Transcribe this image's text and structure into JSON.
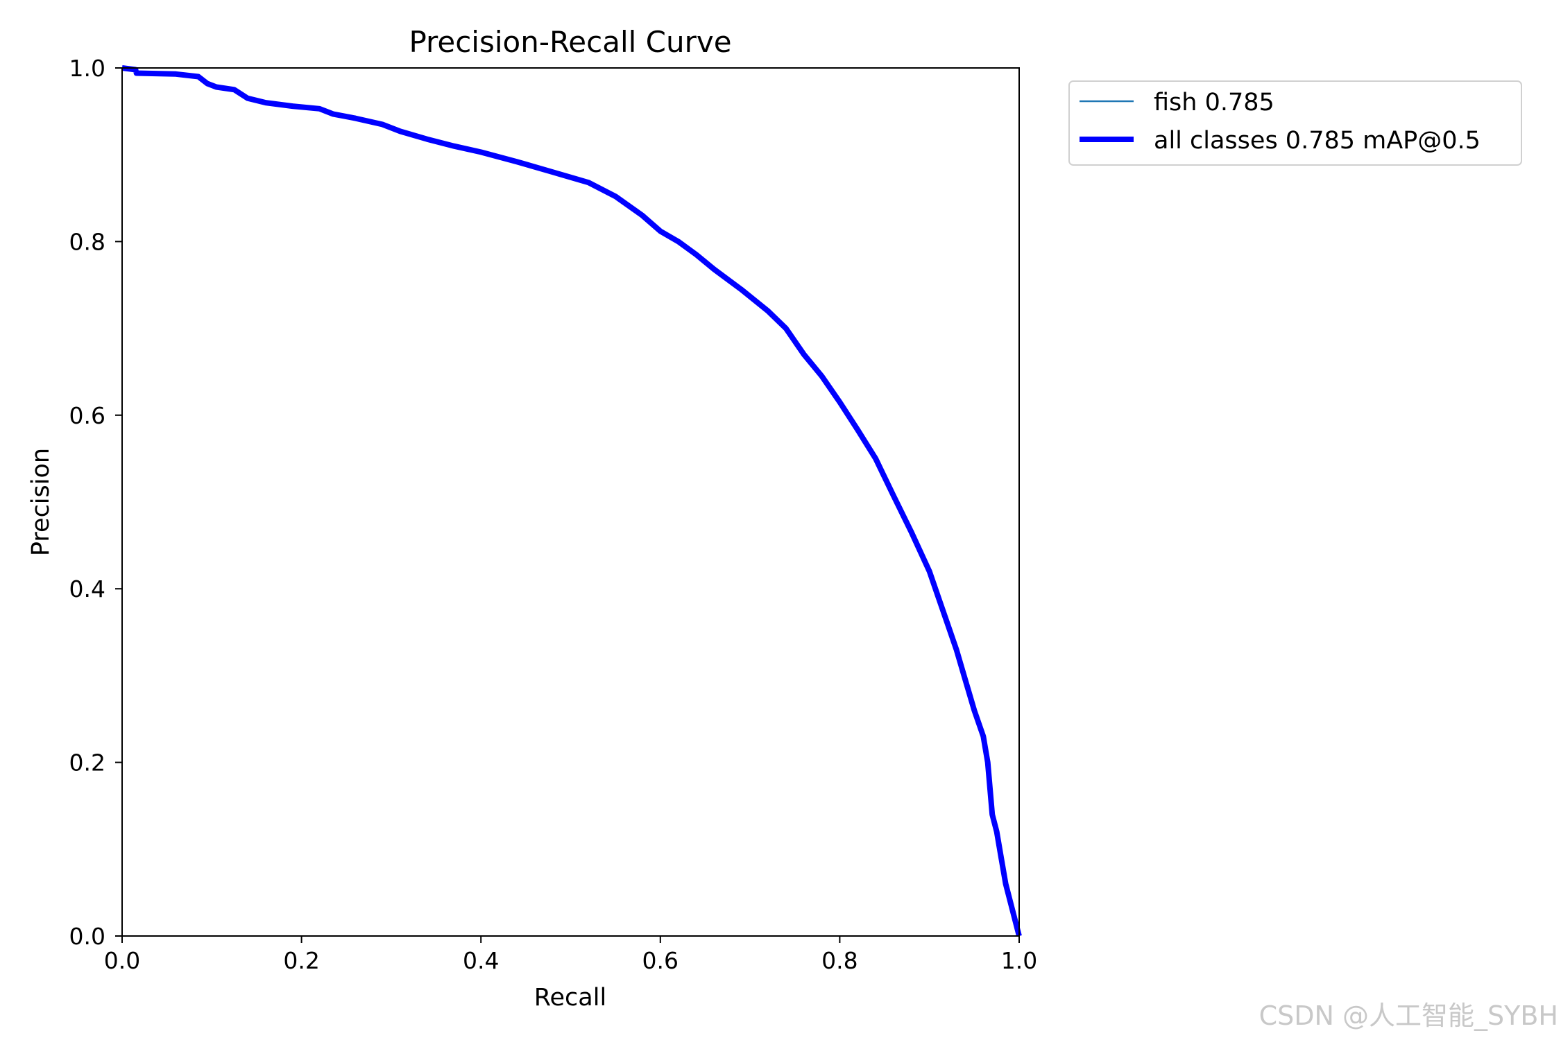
{
  "chart_data": {
    "type": "line",
    "title": "Precision-Recall Curve",
    "xlabel": "Recall",
    "ylabel": "Precision",
    "xlim": [
      0.0,
      1.0
    ],
    "ylim": [
      0.0,
      1.0
    ],
    "xticks": [
      "0.0",
      "0.2",
      "0.4",
      "0.6",
      "0.8",
      "1.0"
    ],
    "yticks": [
      "0.0",
      "0.2",
      "0.4",
      "0.6",
      "0.8",
      "1.0"
    ],
    "grid": false,
    "legend_position": "outside-top-right",
    "series": [
      {
        "name": "fish 0.785",
        "color": "#1f77b4",
        "line_width": "thin",
        "x": [
          0.0,
          0.015,
          0.016,
          0.06,
          0.085,
          0.095,
          0.105,
          0.125,
          0.14,
          0.16,
          0.19,
          0.22,
          0.235,
          0.26,
          0.29,
          0.31,
          0.34,
          0.37,
          0.4,
          0.44,
          0.48,
          0.52,
          0.55,
          0.58,
          0.6,
          0.62,
          0.64,
          0.66,
          0.69,
          0.72,
          0.74,
          0.76,
          0.78,
          0.8,
          0.82,
          0.84,
          0.86,
          0.88,
          0.9,
          0.91,
          0.92,
          0.93,
          0.94,
          0.95,
          0.96,
          0.965,
          0.97,
          0.975,
          0.98,
          0.985,
          1.0
        ],
        "y": [
          1.0,
          0.998,
          0.994,
          0.993,
          0.99,
          0.982,
          0.978,
          0.975,
          0.965,
          0.96,
          0.956,
          0.953,
          0.947,
          0.942,
          0.935,
          0.927,
          0.918,
          0.91,
          0.903,
          0.892,
          0.88,
          0.868,
          0.852,
          0.83,
          0.812,
          0.8,
          0.785,
          0.768,
          0.745,
          0.72,
          0.7,
          0.67,
          0.645,
          0.615,
          0.583,
          0.55,
          0.507,
          0.465,
          0.42,
          0.39,
          0.36,
          0.33,
          0.295,
          0.26,
          0.23,
          0.2,
          0.14,
          0.12,
          0.09,
          0.06,
          0.0
        ]
      },
      {
        "name": "all classes 0.785 mAP@0.5",
        "color": "#0000ff",
        "line_width": "thick",
        "x": [
          0.0,
          0.015,
          0.016,
          0.06,
          0.085,
          0.095,
          0.105,
          0.125,
          0.14,
          0.16,
          0.19,
          0.22,
          0.235,
          0.26,
          0.29,
          0.31,
          0.34,
          0.37,
          0.4,
          0.44,
          0.48,
          0.52,
          0.55,
          0.58,
          0.6,
          0.62,
          0.64,
          0.66,
          0.69,
          0.72,
          0.74,
          0.76,
          0.78,
          0.8,
          0.82,
          0.84,
          0.86,
          0.88,
          0.9,
          0.91,
          0.92,
          0.93,
          0.94,
          0.95,
          0.96,
          0.965,
          0.97,
          0.975,
          0.98,
          0.985,
          1.0
        ],
        "y": [
          1.0,
          0.998,
          0.994,
          0.993,
          0.99,
          0.982,
          0.978,
          0.975,
          0.965,
          0.96,
          0.956,
          0.953,
          0.947,
          0.942,
          0.935,
          0.927,
          0.918,
          0.91,
          0.903,
          0.892,
          0.88,
          0.868,
          0.852,
          0.83,
          0.812,
          0.8,
          0.785,
          0.768,
          0.745,
          0.72,
          0.7,
          0.67,
          0.645,
          0.615,
          0.583,
          0.55,
          0.507,
          0.465,
          0.42,
          0.39,
          0.36,
          0.33,
          0.295,
          0.26,
          0.23,
          0.2,
          0.14,
          0.12,
          0.09,
          0.06,
          0.0
        ]
      }
    ]
  },
  "watermark": "CSDN @人工智能_SYBH"
}
